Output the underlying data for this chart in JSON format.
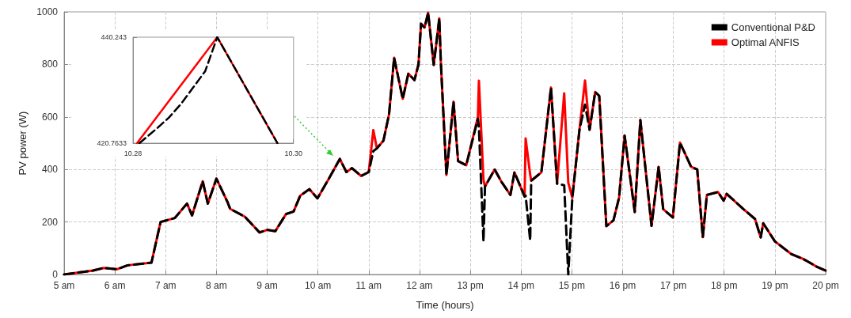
{
  "chart_data": [
    {
      "type": "line",
      "xlabel": "Time (hours)",
      "ylabel": "PV power (W)",
      "x": [
        5,
        5.57,
        5.78,
        6.04,
        6.25,
        6.72,
        6.9,
        7.18,
        7.42,
        7.52,
        7.73,
        7.83,
        8.0,
        8.22,
        8.27,
        8.56,
        8.85,
        9.0,
        9.16,
        9.37,
        9.52,
        9.65,
        9.83,
        9.99,
        10.2,
        10.43,
        10.56,
        10.67,
        10.85,
        11.0,
        11.09,
        11.16,
        11.29,
        11.4,
        11.5,
        11.67,
        11.78,
        11.9,
        11.98,
        12.03,
        12.1,
        12.17,
        12.28,
        12.39,
        12.42,
        12.53,
        12.67,
        12.76,
        12.92,
        13.15,
        13.17,
        13.26,
        13.29,
        13.48,
        13.62,
        13.79,
        13.87,
        14.07,
        14.09,
        14.18,
        14.2,
        14.4,
        14.59,
        14.71,
        14.85,
        14.93,
        15.01,
        15.15,
        15.26,
        15.35,
        15.46,
        15.54,
        15.68,
        15.82,
        15.93,
        16.04,
        16.24,
        16.35,
        16.57,
        16.71,
        16.8,
        16.99,
        17.13,
        17.35,
        17.47,
        17.58,
        17.66,
        17.88,
        17.99,
        18.05,
        18.38,
        18.61,
        18.72,
        18.77,
        19.0,
        19.33,
        19.55,
        19.83,
        20
      ],
      "series": [
        {
          "name": "Optimal ANFIS",
          "color": "#ff0000",
          "line_style": "solid",
          "values": [
            0,
            15,
            25,
            20,
            35,
            45,
            200,
            215,
            270,
            225,
            355,
            270,
            365,
            275,
            250,
            220,
            160,
            170,
            165,
            230,
            240,
            300,
            325,
            290,
            360,
            440,
            390,
            405,
            375,
            390,
            550,
            480,
            510,
            610,
            825,
            669,
            765,
            740,
            800,
            955,
            940,
            997,
            798,
            975,
            809,
            379,
            658,
            432,
            416,
            600,
            738,
            360,
            335,
            400,
            351,
            303,
            389,
            297,
            518,
            380,
            357,
            389,
            712,
            346,
            690,
            350,
            292,
            550,
            739,
            551,
            695,
            680,
            184,
            206,
            292,
            529,
            238,
            588,
            185,
            410,
            249,
            217,
            502,
            410,
            400,
            142,
            303,
            314,
            281,
            307,
            249,
            211,
            141,
            195,
            126,
            77,
            60,
            29,
            15
          ]
        },
        {
          "name": "Conventional P&D",
          "color": "#000000",
          "line_style": "dashed",
          "values": [
            0,
            15,
            25,
            20,
            35,
            45,
            200,
            215,
            270,
            225,
            355,
            270,
            365,
            275,
            250,
            220,
            160,
            170,
            165,
            230,
            240,
            300,
            325,
            290,
            360,
            440,
            390,
            405,
            375,
            390,
            470,
            480,
            510,
            610,
            825,
            669,
            765,
            740,
            800,
            955,
            940,
            997,
            798,
            975,
            809,
            379,
            658,
            432,
            416,
            593,
            560,
            126,
            335,
            400,
            351,
            303,
            389,
            297,
            300,
            130,
            357,
            389,
            712,
            346,
            340,
            0,
            292,
            550,
            647,
            551,
            695,
            680,
            184,
            206,
            292,
            529,
            238,
            588,
            185,
            410,
            249,
            217,
            502,
            410,
            400,
            142,
            303,
            314,
            281,
            307,
            249,
            211,
            141,
            195,
            126,
            77,
            60,
            29,
            15
          ]
        }
      ],
      "xlim": [
        5,
        20
      ],
      "xticks": [
        {
          "value": 5,
          "label": "5 am"
        },
        {
          "value": 6,
          "label": "6 am"
        },
        {
          "value": 7,
          "label": "7 am"
        },
        {
          "value": 8,
          "label": "8 am"
        },
        {
          "value": 9,
          "label": "9 am"
        },
        {
          "value": 10,
          "label": "10 am"
        },
        {
          "value": 11,
          "label": "11 am"
        },
        {
          "value": 12,
          "label": "12 am"
        },
        {
          "value": 13,
          "label": "13 pm"
        },
        {
          "value": 14,
          "label": "14 pm"
        },
        {
          "value": 15,
          "label": "15 pm"
        },
        {
          "value": 16,
          "label": "16 pm"
        },
        {
          "value": 17,
          "label": "17 pm"
        },
        {
          "value": 18,
          "label": "18 pm"
        },
        {
          "value": 19,
          "label": "19 pm"
        },
        {
          "value": 20,
          "label": "20 pm"
        }
      ],
      "ylim": [
        0,
        1000
      ],
      "yticks": [
        0,
        200,
        400,
        600,
        800,
        1000
      ],
      "grid": true,
      "legend": "top right",
      "marker": "none"
    },
    {
      "type": "line",
      "series": [
        {
          "color": "#ff0000",
          "line_style": "solid",
          "x": [
            10.2805,
            10.2905,
            10.298
          ],
          "values": [
            420.7633,
            440.243,
            420.7633
          ]
        },
        {
          "color": "#000000",
          "line_style": "dashed",
          "x": [
            10.2808,
            10.283,
            10.2845,
            10.286,
            10.2875,
            10.289,
            10.2905,
            10.298
          ],
          "values": [
            420.7633,
            423.5,
            425.5,
            428,
            431,
            434,
            440.243,
            420.7633
          ]
        }
      ],
      "xlim": [
        10.28,
        10.3
      ],
      "xticks": [
        10.28,
        {
          "value": 10.3,
          "label": "10.30"
        }
      ],
      "ylim": [
        420.7633,
        440.243
      ],
      "yticks": [
        420.7633,
        440.243
      ],
      "grid": false,
      "legend": false,
      "marker": "none"
    }
  ]
}
